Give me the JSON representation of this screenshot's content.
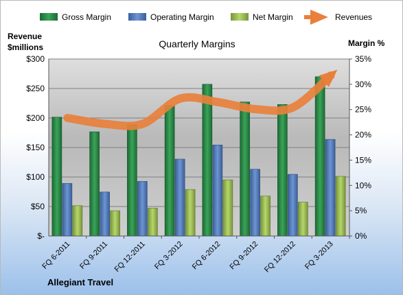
{
  "chart_data": {
    "type": "bar",
    "title": "Quarterly Margins",
    "categories": [
      "FQ 6-2011",
      "FQ 9-2011",
      "FQ 12-2011",
      "FQ 3-2012",
      "FQ 6-2012",
      "FQ 9-2012",
      "FQ 12-2012",
      "FQ 3-2013"
    ],
    "series": [
      {
        "name": "Gross Margin",
        "axis": "right",
        "color": "#2e8b48",
        "values": [
          23.5,
          20.6,
          22.0,
          25.8,
          30.0,
          26.5,
          26.0,
          31.5
        ]
      },
      {
        "name": "Operating Margin",
        "axis": "right",
        "color": "#4f7ec0",
        "values": [
          10.4,
          8.7,
          10.8,
          15.2,
          18.0,
          13.2,
          12.2,
          19.1
        ]
      },
      {
        "name": "Net Margin",
        "axis": "right",
        "color": "#9cbf4c",
        "values": [
          6.0,
          5.0,
          5.5,
          9.2,
          11.1,
          7.9,
          6.7,
          11.8
        ]
      },
      {
        "name": "Revenues",
        "type": "line",
        "axis": "left",
        "color": "#e8803c",
        "values": [
          200,
          190,
          190,
          233,
          227,
          215,
          218,
          272
        ]
      }
    ],
    "y_left": {
      "label_line1": "Revenue",
      "label_line2": "$millions",
      "range": [
        0,
        300
      ],
      "ticks": [
        {
          "value": 0,
          "label": "$-"
        },
        {
          "value": 50,
          "label": "$50"
        },
        {
          "value": 100,
          "label": "$100"
        },
        {
          "value": 150,
          "label": "$150"
        },
        {
          "value": 200,
          "label": "$200"
        },
        {
          "value": 250,
          "label": "$250"
        },
        {
          "value": 300,
          "label": "$300"
        }
      ]
    },
    "y_right": {
      "label": "Margin %",
      "range": [
        0,
        35
      ],
      "ticks": [
        {
          "value": 0,
          "label": "0%"
        },
        {
          "value": 5,
          "label": "5%"
        },
        {
          "value": 10,
          "label": "10%"
        },
        {
          "value": 15,
          "label": "15%"
        },
        {
          "value": 20,
          "label": "20%"
        },
        {
          "value": 25,
          "label": "25%"
        },
        {
          "value": 30,
          "label": "30%"
        },
        {
          "value": 35,
          "label": "35%"
        }
      ]
    },
    "grid": true,
    "legend_position": "top"
  },
  "footer": {
    "company": "Allegiant Travel"
  }
}
